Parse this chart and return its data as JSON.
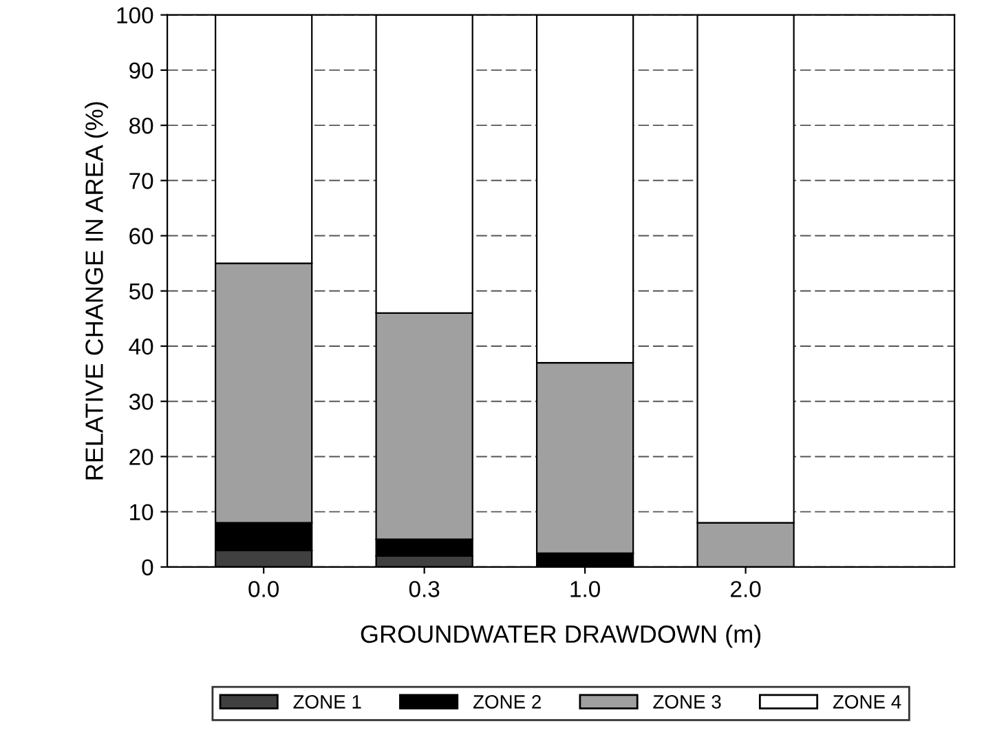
{
  "chart_data": {
    "type": "bar",
    "stacked": true,
    "xlabel": "GROUNDWATER DRAWDOWN (m)",
    "ylabel": "RELATIVE CHANGE IN AREA (%)",
    "categories": [
      "0.0",
      "0.3",
      "1.0",
      "2.0"
    ],
    "series": [
      {
        "name": "ZONE 1",
        "color": "#404040",
        "values": [
          3,
          2,
          0,
          0
        ]
      },
      {
        "name": "ZONE 2",
        "color": "#000000",
        "values": [
          5,
          3,
          2.5,
          0
        ]
      },
      {
        "name": "ZONE 3",
        "color": "#a0a0a0",
        "values": [
          47,
          41,
          34.5,
          8
        ]
      },
      {
        "name": "ZONE 4",
        "color": "#ffffff",
        "values": [
          45,
          54,
          63,
          92
        ]
      }
    ],
    "ylim": [
      0,
      100
    ],
    "yticks": [
      0,
      10,
      20,
      30,
      40,
      50,
      60,
      70,
      80,
      90,
      100
    ],
    "grid": "y",
    "legend": "bottom"
  }
}
